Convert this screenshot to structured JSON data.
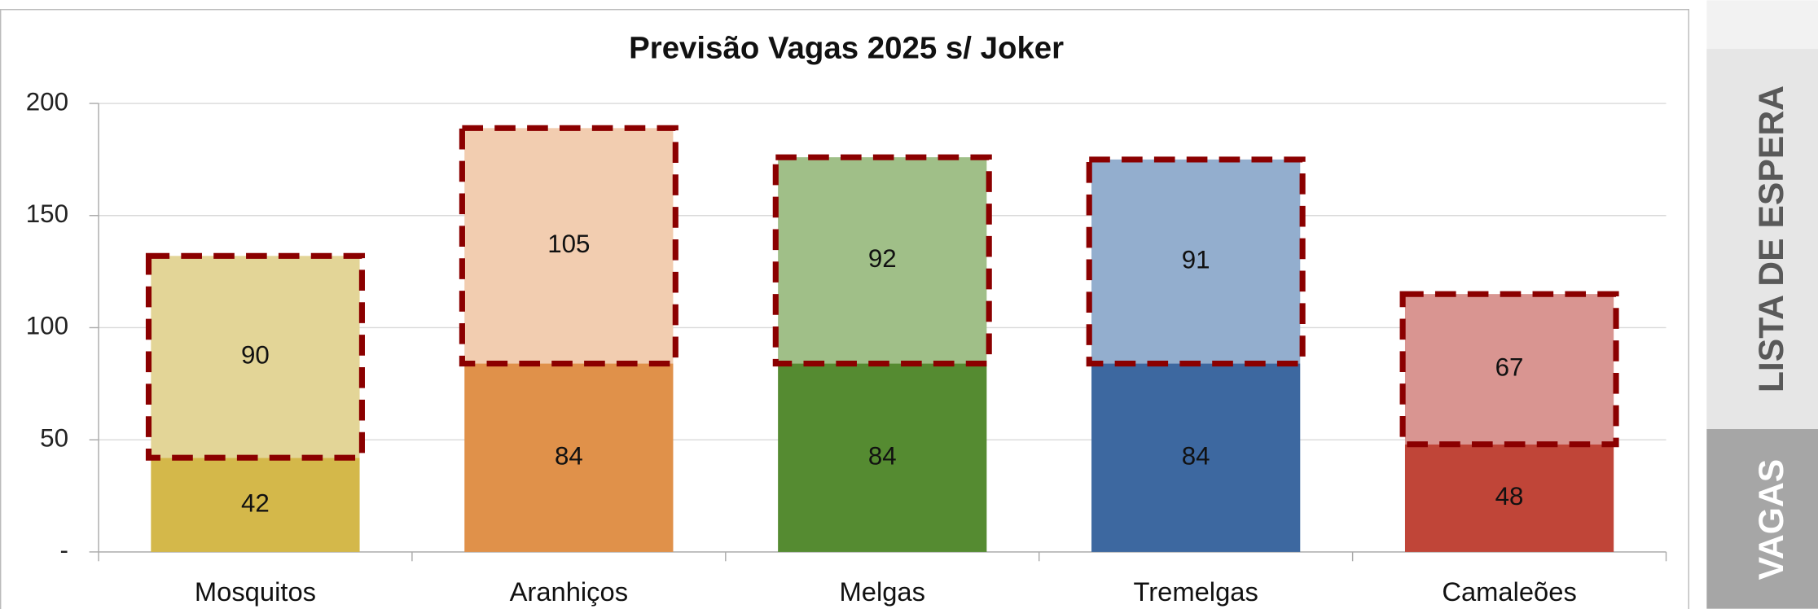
{
  "chart_data": {
    "type": "stacked_bar",
    "title": "Previsão Vagas 2025 s/ Joker",
    "categories": [
      "Mosquitos",
      "Aranhiços",
      "Melgas",
      "Tremelgas",
      "Camaleões"
    ],
    "series": [
      {
        "name": "VAGAS",
        "colors": [
          "#d4b84a",
          "#e0914a",
          "#558b31",
          "#3d68a0",
          "#c04538"
        ],
        "values": [
          42,
          84,
          84,
          84,
          48
        ]
      },
      {
        "name": "LISTA DE ESPERA",
        "colors": [
          "#e3d597",
          "#f2cdb0",
          "#a0bf88",
          "#93aece",
          "#d99591"
        ],
        "outline": "#8b0000",
        "values": [
          90,
          105,
          92,
          91,
          67
        ]
      }
    ],
    "ylim": [
      0,
      200
    ],
    "yticks": [
      {
        "value": 0,
        "label": "-"
      },
      50,
      100,
      150,
      200
    ],
    "grid": true
  }
}
